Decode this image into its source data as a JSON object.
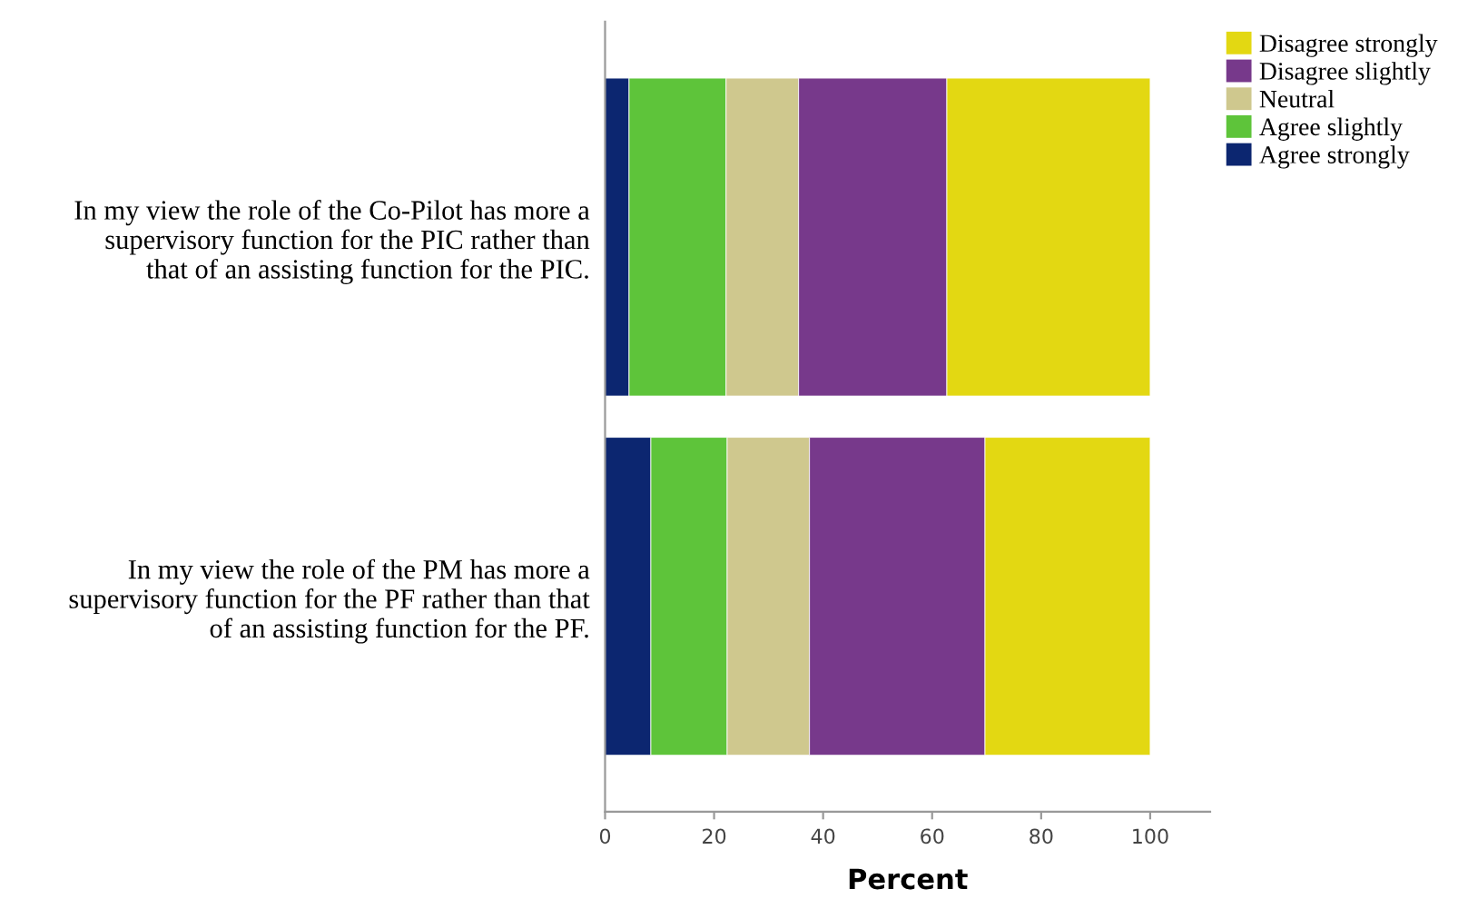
{
  "chart_data": {
    "type": "bar",
    "orientation": "horizontal",
    "stacked": true,
    "xlabel": "Percent",
    "categories": [
      "In my view the role of the Co-Pilot has more a\nsupervisory function for the PIC rather than\nthat of an assisting function for the PIC.",
      "In my view the role of the PM has more a\nsupervisory function for the PF rather than that\nof an assisting function for the PF."
    ],
    "series": [
      {
        "name": "Agree strongly",
        "color": "#0c2670",
        "values": [
          4.4,
          8.4
        ]
      },
      {
        "name": "Agree slightly",
        "color": "#5ec43a",
        "values": [
          17.8,
          14.0
        ]
      },
      {
        "name": "Neutral",
        "color": "#cfc88e",
        "values": [
          13.3,
          15.1
        ]
      },
      {
        "name": "Disagree slightly",
        "color": "#77398b",
        "values": [
          27.2,
          32.2
        ]
      },
      {
        "name": "Disagree strongly",
        "color": "#e3d812",
        "values": [
          37.3,
          30.3
        ]
      }
    ],
    "xlim": [
      0,
      111
    ],
    "xticks": [
      0,
      20,
      40,
      60,
      80,
      100
    ],
    "grid": false,
    "legend": "top right"
  }
}
